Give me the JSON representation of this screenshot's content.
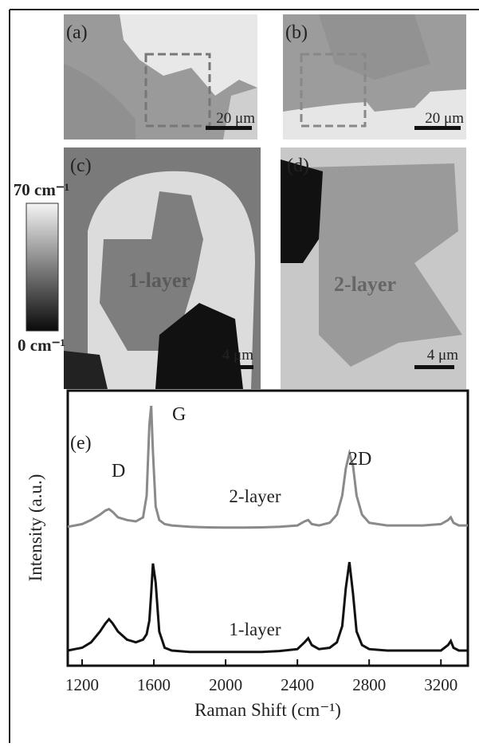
{
  "panels": [
    {
      "label": "(a)",
      "scale_bar": "20 μm"
    },
    {
      "label": "(b)",
      "scale_bar": "20 μm"
    },
    {
      "label": "(c)",
      "scale_bar": "4 μm",
      "region": "1-layer"
    },
    {
      "label": "(d)",
      "scale_bar": "4 μm",
      "region": "2-layer"
    }
  ],
  "colorbar": {
    "max_label": "70 cm⁻¹",
    "min_label": "0 cm⁻¹"
  },
  "chart_data": {
    "type": "line",
    "xlabel": "Raman Shift (cm⁻¹)",
    "ylabel": "Intensity (a.u.)",
    "annotations": [
      "(e)",
      "D",
      "G",
      "2D"
    ],
    "xlim": [
      1120,
      3350
    ],
    "ylim": [
      0,
      100
    ],
    "xticks": [
      1200,
      1600,
      2000,
      2400,
      2800,
      3200
    ],
    "x": [
      1120,
      1160,
      1200,
      1250,
      1300,
      1330,
      1350,
      1370,
      1400,
      1450,
      1500,
      1540,
      1560,
      1575,
      1585,
      1595,
      1610,
      1630,
      1660,
      1700,
      1800,
      1900,
      2000,
      2100,
      2200,
      2300,
      2400,
      2440,
      2460,
      2480,
      2520,
      2580,
      2620,
      2650,
      2670,
      2690,
      2710,
      2730,
      2760,
      2800,
      2900,
      3000,
      3100,
      3200,
      3240,
      3255,
      3270,
      3300,
      3350
    ],
    "series": [
      {
        "name": "2-layer",
        "color": "#8a8a8a",
        "values": [
          50.5,
          51,
          51.5,
          53,
          55,
          56.5,
          57,
          56,
          54,
          53,
          52.5,
          54,
          62,
          88,
          95,
          78,
          58,
          53,
          51.5,
          51,
          50.5,
          50.3,
          50.2,
          50.2,
          50.3,
          50.5,
          51,
          52.5,
          53,
          51.5,
          51,
          52,
          55,
          62,
          72,
          77.5,
          73,
          62,
          55,
          52,
          51,
          51,
          51,
          51.5,
          53,
          54,
          52,
          51,
          51
        ]
      },
      {
        "name": "1-layer",
        "color": "#111111",
        "values": [
          5,
          5.5,
          6,
          8,
          12,
          15,
          16.5,
          15,
          12,
          9,
          8,
          9,
          11,
          16,
          26,
          37,
          30,
          12,
          6,
          5,
          4.5,
          4.5,
          4.5,
          4.5,
          4.5,
          4.8,
          5.5,
          8,
          9.5,
          7,
          5.5,
          6,
          8,
          14,
          28,
          37.5,
          26,
          12,
          7,
          5.5,
          5,
          5,
          5,
          5,
          7,
          8.5,
          6,
          5,
          5
        ]
      }
    ]
  }
}
